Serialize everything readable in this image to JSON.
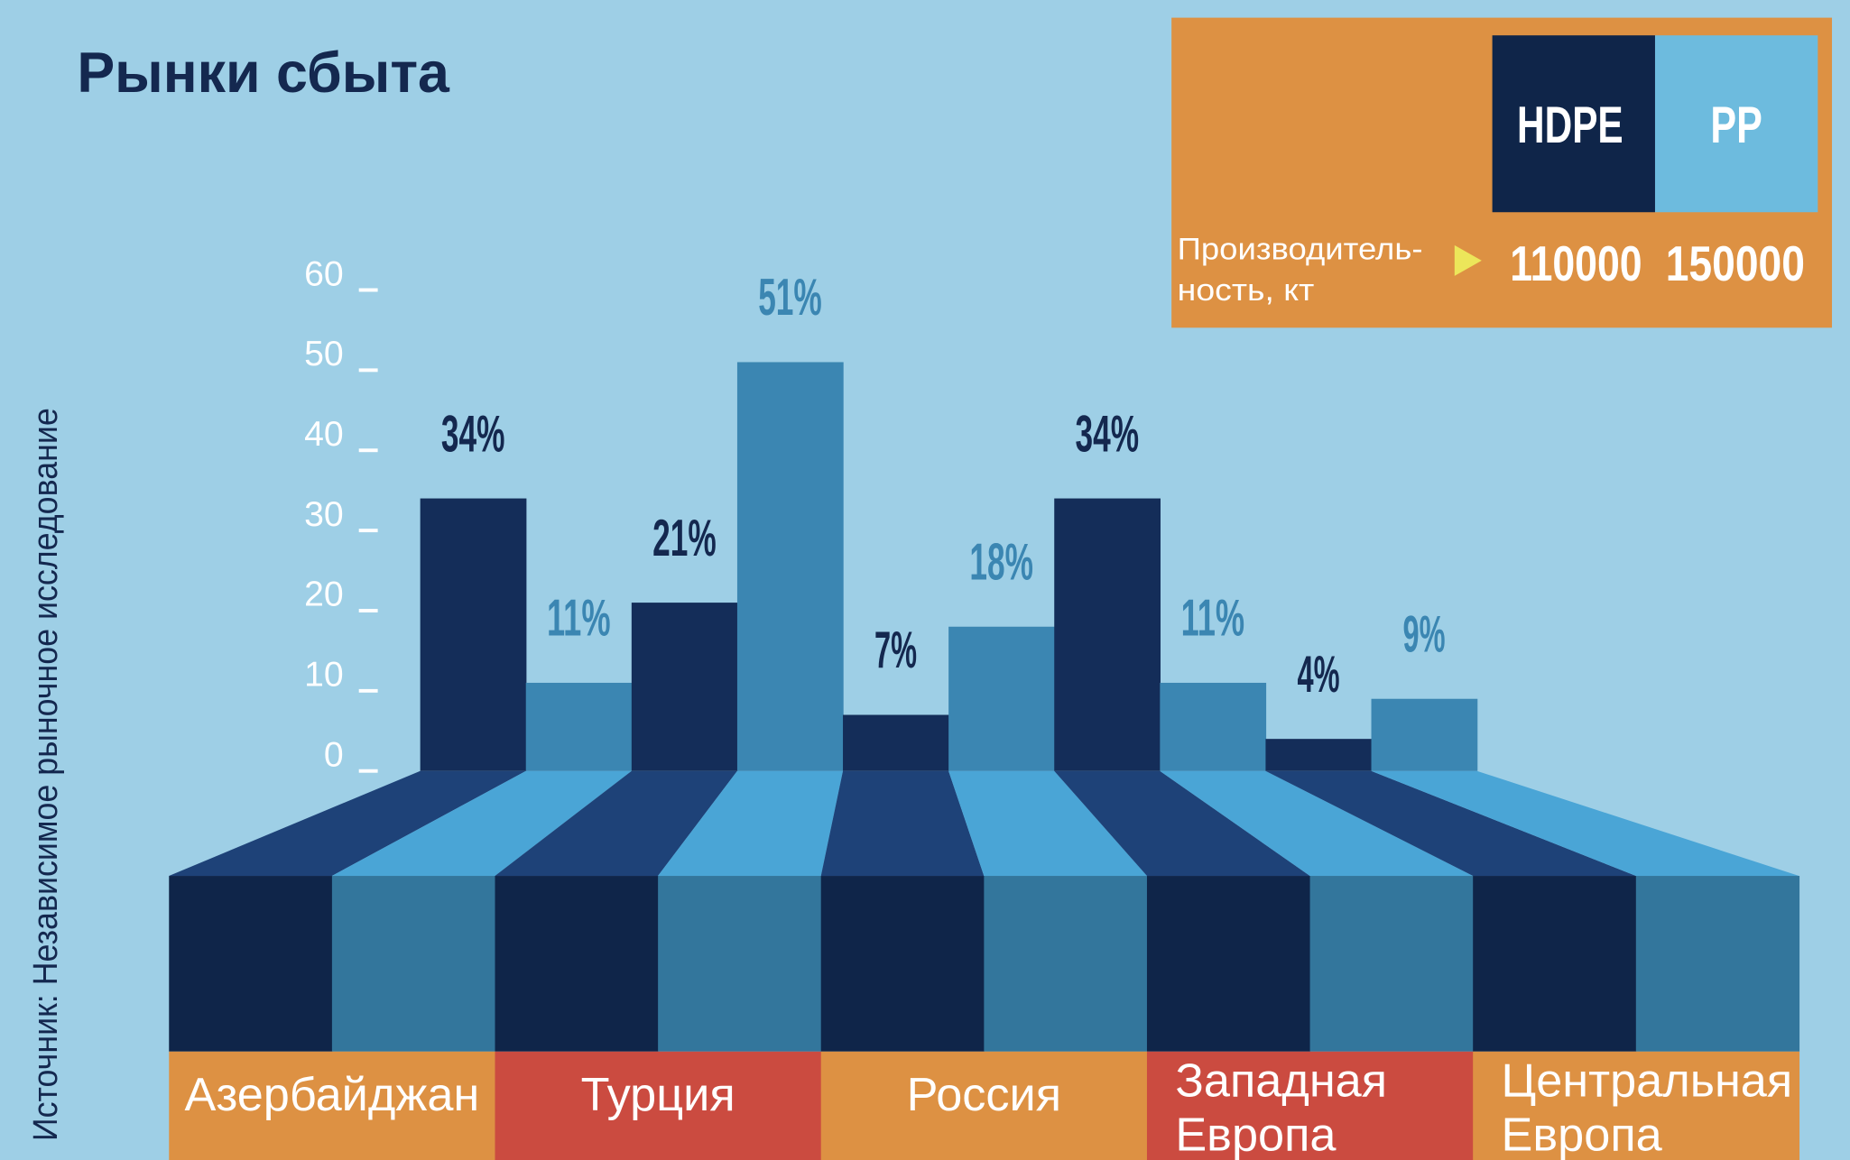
{
  "title": "Рынки сбыта",
  "source": "Источник: Независимое рыночное исследование",
  "legend": {
    "hdpe_label": "HDPE",
    "pp_label": "PP",
    "capacity_label_line1": "Производитель-",
    "capacity_label_line2": "ность, кт",
    "hdpe_capacity": "110000",
    "pp_capacity": "150000",
    "arrow_icon": "triangle-right"
  },
  "colors": {
    "background": "#9ecfe6",
    "hdpe": "#142d59",
    "pp": "#3b86b2",
    "hdpe_label": "#14284f",
    "legend_box": "#dd9143",
    "legend_hdpe": "#0f2549",
    "legend_pp": "#6dbbde",
    "band_orange": "#dd9143",
    "band_red": "#cb4b40"
  },
  "chart_data": {
    "type": "bar",
    "title": "Рынки сбыта",
    "categories": [
      "Азербайджан",
      "Турция",
      "Россия",
      "Западная Европа",
      "Центральная Европа"
    ],
    "category_lines": [
      [
        "Азербайджан"
      ],
      [
        "Турция"
      ],
      [
        "Россия"
      ],
      [
        "Западная",
        "Европа"
      ],
      [
        "Центральная",
        "Европа"
      ]
    ],
    "series": [
      {
        "name": "HDPE",
        "values": [
          34,
          21,
          7,
          34,
          4
        ],
        "labels": [
          "34%",
          "21%",
          "7%",
          "34%",
          "4%"
        ]
      },
      {
        "name": "PP",
        "values": [
          11,
          51,
          18,
          11,
          9
        ],
        "labels": [
          "11%",
          "51%",
          "18%",
          "11%",
          "9%"
        ]
      }
    ],
    "ylim": [
      0,
      60
    ],
    "yticks": [
      "0",
      "10",
      "20",
      "30",
      "40",
      "50",
      "60"
    ],
    "xlabel": "",
    "ylabel": "",
    "legend": "top-right",
    "grid": false
  }
}
